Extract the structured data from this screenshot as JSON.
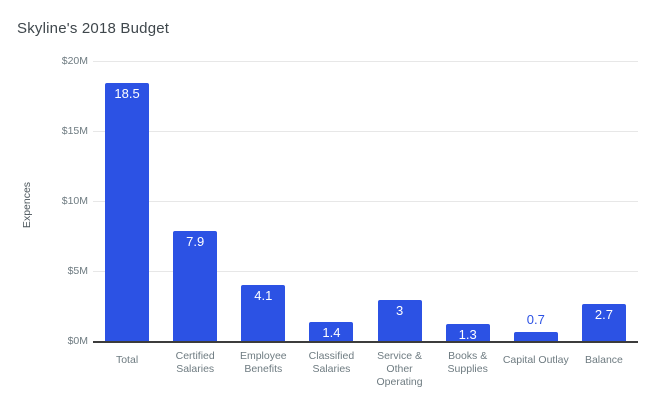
{
  "chart_data": {
    "type": "bar",
    "title": "Skyline's 2018 Budget",
    "ylabel": "Expences",
    "xlabel": "",
    "categories": [
      "Total",
      "Certified Salaries",
      "Employee Benefits",
      "Classified Salaries",
      "Service & Other Operating",
      "Books & Supplies",
      "Capital Outlay",
      "Balance"
    ],
    "values": [
      18.5,
      7.9,
      4.1,
      1.4,
      3,
      1.3,
      0.7,
      2.7
    ],
    "value_labels": [
      "18.5",
      "7.9",
      "4.1",
      "1.4",
      "3",
      "1.3",
      "0.7",
      "2.7"
    ],
    "ylim": [
      0,
      20
    ],
    "yticks": [
      {
        "value": 0,
        "label": "$0M"
      },
      {
        "value": 5,
        "label": "$5M"
      },
      {
        "value": 10,
        "label": "$10M"
      },
      {
        "value": 15,
        "label": "$15M"
      },
      {
        "value": 20,
        "label": "$20M"
      }
    ],
    "grid": "horizontal",
    "legend": "none",
    "colors": {
      "bar": "#2c52e4",
      "value_label_inside": "#ffffff",
      "value_label_outside": "#2c52e4",
      "gridline": "#e7e7e7",
      "axis_line": "#3c3c3c",
      "tick_label": "#6e7b81",
      "title": "#3f474c",
      "background": "#ffffff"
    }
  }
}
